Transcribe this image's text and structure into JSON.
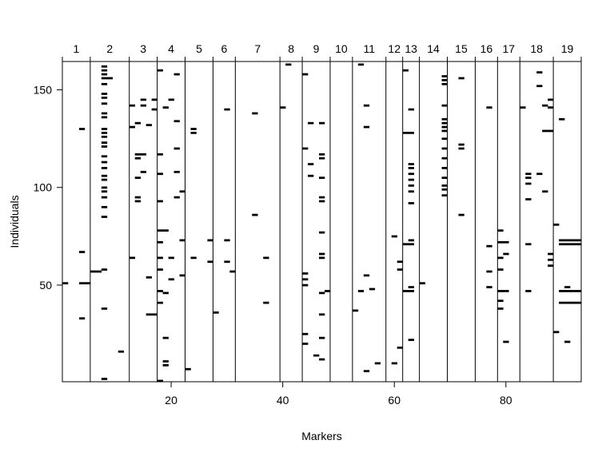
{
  "chart_data": {
    "type": "heatmap",
    "title": "",
    "xlabel": "Markers",
    "ylabel": "Individuals",
    "xlim": [
      0.5,
      93.5
    ],
    "ylim": [
      0.5,
      164.5
    ],
    "x_ticks": [
      20,
      40,
      60,
      80
    ],
    "y_ticks": [
      50,
      100,
      150
    ],
    "chromosome_boundaries": [
      5.5,
      12.5,
      17.5,
      22.5,
      27.5,
      31.5,
      39.5,
      43.5,
      48.5,
      52.5,
      58.5,
      61.5,
      64.5,
      69.5,
      74.5,
      78.5,
      82.5,
      88.5
    ],
    "chromosomes": [
      {
        "label": "1",
        "center": 3
      },
      {
        "label": "2",
        "center": 9
      },
      {
        "label": "3",
        "center": 15
      },
      {
        "label": "4",
        "center": 20
      },
      {
        "label": "5",
        "center": 25
      },
      {
        "label": "6",
        "center": 29.5
      },
      {
        "label": "7",
        "center": 35.5
      },
      {
        "label": "8",
        "center": 41.5
      },
      {
        "label": "9",
        "center": 46
      },
      {
        "label": "10",
        "center": 50.5
      },
      {
        "label": "11",
        "center": 55.5
      },
      {
        "label": "12",
        "center": 60
      },
      {
        "label": "13",
        "center": 63
      },
      {
        "label": "14",
        "center": 67
      },
      {
        "label": "15",
        "center": 72
      },
      {
        "label": "16",
        "center": 76.5
      },
      {
        "label": "17",
        "center": 80.5
      },
      {
        "label": "18",
        "center": 85.5
      },
      {
        "label": "19",
        "center": 91
      }
    ],
    "missing_cells": [
      [
        1,
        51
      ],
      [
        4,
        130
      ],
      [
        4,
        67
      ],
      [
        4,
        51
      ],
      [
        5,
        51
      ],
      [
        4,
        33
      ],
      [
        7,
        57
      ],
      [
        8,
        162
      ],
      [
        8,
        160
      ],
      [
        8,
        158
      ],
      [
        8,
        156
      ],
      [
        9,
        156
      ],
      [
        8,
        153
      ],
      [
        8,
        148
      ],
      [
        8,
        146
      ],
      [
        8,
        143
      ],
      [
        8,
        138
      ],
      [
        8,
        136
      ],
      [
        8,
        130
      ],
      [
        8,
        128
      ],
      [
        8,
        126
      ],
      [
        8,
        123
      ],
      [
        8,
        121
      ],
      [
        8,
        116
      ],
      [
        8,
        113
      ],
      [
        8,
        110
      ],
      [
        8,
        106
      ],
      [
        8,
        104
      ],
      [
        8,
        100
      ],
      [
        8,
        98
      ],
      [
        8,
        95
      ],
      [
        8,
        90
      ],
      [
        8,
        85
      ],
      [
        8,
        58
      ],
      [
        8,
        38
      ],
      [
        8,
        2
      ],
      [
        6,
        57
      ],
      [
        11,
        16
      ],
      [
        13,
        142
      ],
      [
        13,
        131
      ],
      [
        13,
        64
      ],
      [
        14,
        133
      ],
      [
        14,
        117
      ],
      [
        14,
        115
      ],
      [
        14,
        105
      ],
      [
        14,
        95
      ],
      [
        14,
        93
      ],
      [
        15,
        145
      ],
      [
        15,
        142
      ],
      [
        15,
        117
      ],
      [
        15,
        108
      ],
      [
        16,
        132
      ],
      [
        16,
        54
      ],
      [
        16,
        35
      ],
      [
        17,
        35
      ],
      [
        17,
        145
      ],
      [
        17,
        140
      ],
      [
        18,
        160
      ],
      [
        18,
        117
      ],
      [
        18,
        107
      ],
      [
        18,
        93
      ],
      [
        18,
        78
      ],
      [
        18,
        72
      ],
      [
        18,
        64
      ],
      [
        18,
        58
      ],
      [
        18,
        47
      ],
      [
        18,
        41
      ],
      [
        18,
        1
      ],
      [
        19,
        141
      ],
      [
        19,
        78
      ],
      [
        19,
        46
      ],
      [
        19,
        23
      ],
      [
        19,
        11
      ],
      [
        19,
        9
      ],
      [
        20,
        145
      ],
      [
        20,
        64
      ],
      [
        20,
        53
      ],
      [
        21,
        158
      ],
      [
        21,
        134
      ],
      [
        21,
        120
      ],
      [
        21,
        108
      ],
      [
        21,
        95
      ],
      [
        22,
        98
      ],
      [
        22,
        73
      ],
      [
        22,
        55
      ],
      [
        23,
        7
      ],
      [
        24,
        130
      ],
      [
        24,
        128
      ],
      [
        24,
        64
      ],
      [
        27,
        73
      ],
      [
        27,
        62
      ],
      [
        28,
        36
      ],
      [
        30,
        140
      ],
      [
        30,
        73
      ],
      [
        30,
        62
      ],
      [
        31,
        57
      ],
      [
        35,
        138
      ],
      [
        35,
        86
      ],
      [
        37,
        64
      ],
      [
        37,
        41
      ],
      [
        40,
        141
      ],
      [
        41,
        163
      ],
      [
        44,
        158
      ],
      [
        44,
        120
      ],
      [
        44,
        56
      ],
      [
        44,
        53
      ],
      [
        44,
        50
      ],
      [
        44,
        25
      ],
      [
        44,
        20
      ],
      [
        45,
        133
      ],
      [
        45,
        106
      ],
      [
        45,
        112
      ],
      [
        46,
        14
      ],
      [
        47,
        133
      ],
      [
        47,
        117
      ],
      [
        47,
        115
      ],
      [
        47,
        105
      ],
      [
        47,
        95
      ],
      [
        47,
        93
      ],
      [
        47,
        77
      ],
      [
        47,
        66
      ],
      [
        47,
        64
      ],
      [
        47,
        46
      ],
      [
        47,
        35
      ],
      [
        47,
        23
      ],
      [
        47,
        12
      ],
      [
        48,
        47
      ],
      [
        53,
        37
      ],
      [
        54,
        163
      ],
      [
        54,
        47
      ],
      [
        55,
        142
      ],
      [
        55,
        131
      ],
      [
        55,
        55
      ],
      [
        55,
        6
      ],
      [
        56,
        48
      ],
      [
        57,
        10
      ],
      [
        60,
        75
      ],
      [
        60,
        10
      ],
      [
        61,
        62
      ],
      [
        61,
        58
      ],
      [
        61,
        18
      ],
      [
        62,
        160
      ],
      [
        62,
        128
      ],
      [
        63,
        128
      ],
      [
        62,
        71
      ],
      [
        63,
        71
      ],
      [
        62,
        47
      ],
      [
        63,
        47
      ],
      [
        63,
        140
      ],
      [
        63,
        112
      ],
      [
        63,
        110
      ],
      [
        63,
        107
      ],
      [
        63,
        104
      ],
      [
        63,
        101
      ],
      [
        63,
        98
      ],
      [
        63,
        92
      ],
      [
        63,
        73
      ],
      [
        63,
        49
      ],
      [
        63,
        22
      ],
      [
        65,
        51
      ],
      [
        69,
        157
      ],
      [
        69,
        155
      ],
      [
        69,
        153
      ],
      [
        69,
        142
      ],
      [
        69,
        135
      ],
      [
        69,
        133
      ],
      [
        69,
        131
      ],
      [
        69,
        129
      ],
      [
        69,
        125
      ],
      [
        69,
        120
      ],
      [
        69,
        115
      ],
      [
        69,
        110
      ],
      [
        69,
        105
      ],
      [
        69,
        101
      ],
      [
        69,
        99
      ],
      [
        69,
        96
      ],
      [
        72,
        156
      ],
      [
        72,
        122
      ],
      [
        72,
        120
      ],
      [
        72,
        86
      ],
      [
        77,
        141
      ],
      [
        77,
        70
      ],
      [
        77,
        57
      ],
      [
        77,
        49
      ],
      [
        79,
        78
      ],
      [
        79,
        72
      ],
      [
        79,
        64
      ],
      [
        79,
        58
      ],
      [
        79,
        47
      ],
      [
        79,
        42
      ],
      [
        79,
        38
      ],
      [
        80,
        72
      ],
      [
        80,
        66
      ],
      [
        80,
        47
      ],
      [
        80,
        21
      ],
      [
        83,
        141
      ],
      [
        84,
        107
      ],
      [
        84,
        105
      ],
      [
        84,
        102
      ],
      [
        84,
        94
      ],
      [
        84,
        71
      ],
      [
        84,
        47
      ],
      [
        86,
        159
      ],
      [
        86,
        152
      ],
      [
        86,
        107
      ],
      [
        87,
        142
      ],
      [
        87,
        98
      ],
      [
        87,
        129
      ],
      [
        88,
        129
      ],
      [
        88,
        145
      ],
      [
        88,
        141
      ],
      [
        88,
        66
      ],
      [
        88,
        63
      ],
      [
        88,
        60
      ],
      [
        89,
        81
      ],
      [
        89,
        26
      ],
      [
        90,
        135
      ],
      [
        91,
        49
      ],
      [
        91,
        21
      ],
      [
        90,
        73
      ],
      [
        91,
        73
      ],
      [
        92,
        73
      ],
      [
        93,
        73
      ],
      [
        90,
        71
      ],
      [
        91,
        71
      ],
      [
        92,
        71
      ],
      [
        93,
        71
      ],
      [
        90,
        47
      ],
      [
        91,
        47
      ],
      [
        92,
        47
      ],
      [
        93,
        47
      ],
      [
        90,
        41
      ],
      [
        91,
        41
      ],
      [
        92,
        41
      ],
      [
        93,
        41
      ]
    ]
  }
}
